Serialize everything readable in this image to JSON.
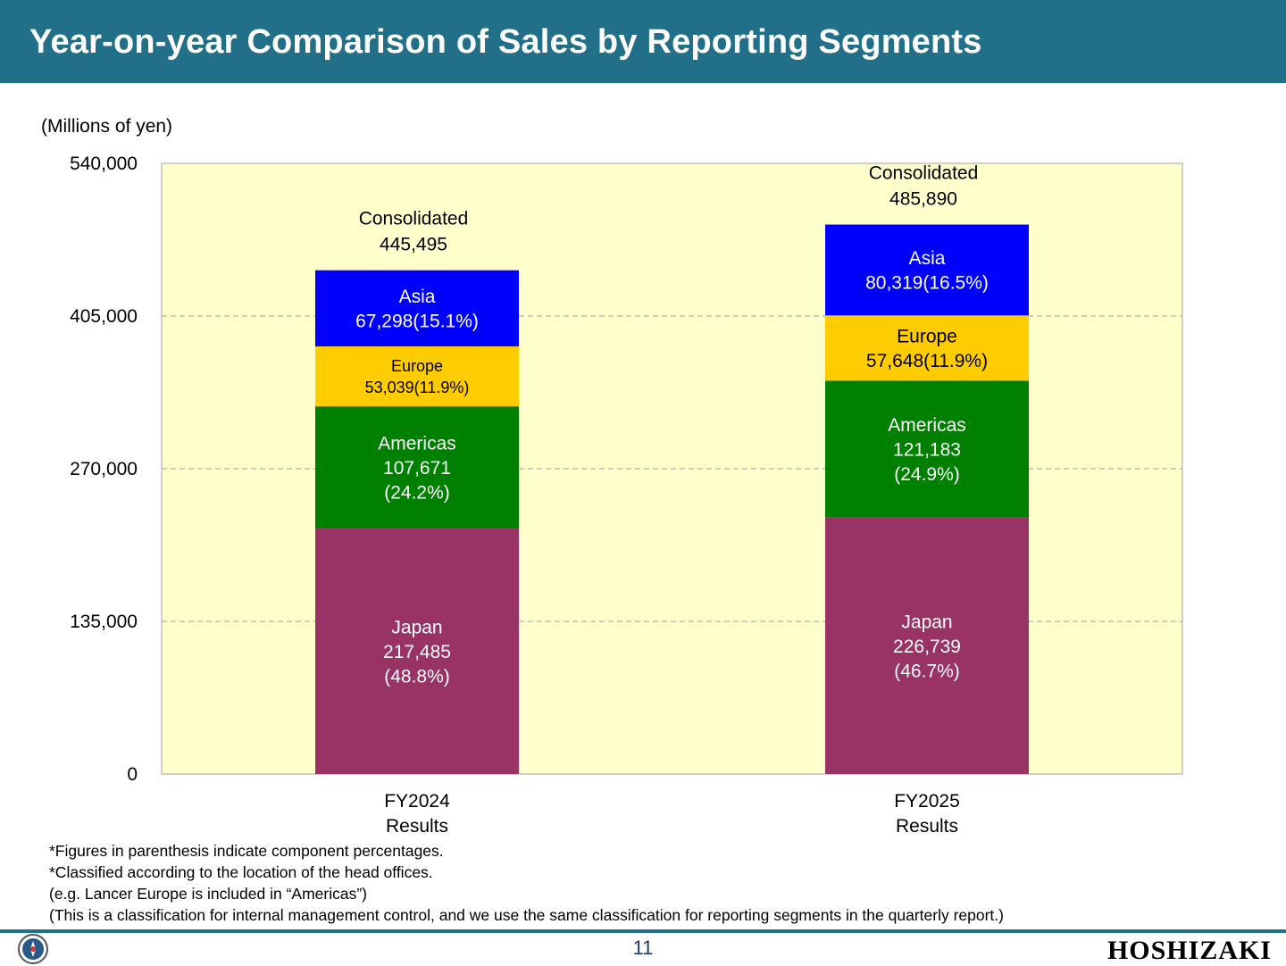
{
  "header": {
    "title": "Year-on-year Comparison of Sales by Reporting Segments"
  },
  "unit_label": "(Millions of yen)",
  "chart_data": {
    "type": "bar",
    "stacked": true,
    "categories": [
      [
        "FY2024",
        "Results"
      ],
      [
        "FY2025",
        "Results"
      ]
    ],
    "ylim": [
      0,
      540000
    ],
    "yticks": [
      "0",
      "135,000",
      "270,000",
      "405,000",
      "540,000"
    ],
    "grid": true,
    "plot_background": "#ffffcc",
    "series": [
      {
        "name": "Japan",
        "color": "#993366",
        "text_color": "#ffffff",
        "values": [
          217485,
          226739
        ],
        "labels": [
          [
            "Japan",
            "217,485",
            "(48.8%)"
          ],
          [
            "Japan",
            "226,739",
            "(46.7%)"
          ]
        ]
      },
      {
        "name": "Americas",
        "color": "#008000",
        "text_color": "#ffffff",
        "values": [
          107671,
          121183
        ],
        "labels": [
          [
            "Americas",
            "107,671",
            "(24.2%)"
          ],
          [
            "Americas",
            "121,183",
            "(24.9%)"
          ]
        ]
      },
      {
        "name": "Europe",
        "color": "#ffcc00",
        "text_color": "#000000",
        "values": [
          53039,
          57648
        ],
        "labels": [
          [
            "Europe",
            "53,039(11.9%)"
          ],
          [
            "Europe",
            "57,648(11.9%)"
          ]
        ]
      },
      {
        "name": "Asia",
        "color": "#0000ff",
        "text_color": "#ffffff",
        "values": [
          67298,
          80319
        ],
        "labels": [
          [
            "Asia",
            "67,298(15.1%)"
          ],
          [
            "Asia",
            "80,319(16.5%)"
          ]
        ]
      }
    ],
    "totals": [
      {
        "label": "Consolidated",
        "value": "445,495"
      },
      {
        "label": "Consolidated",
        "value": "485,890"
      }
    ]
  },
  "notes": [
    "*Figures in parenthesis indicate component percentages.",
    "*Classified according to the location of the head offices.",
    "(e.g. Lancer Europe is included in “Americas”)",
    "(This is a classification for internal management control, and we use the same classification for reporting segments in the quarterly report.)"
  ],
  "footer": {
    "page_number": "11",
    "logo_text": "HOSHIZAKI"
  }
}
